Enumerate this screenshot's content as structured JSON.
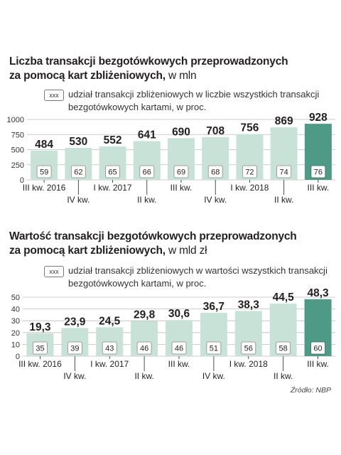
{
  "charts": [
    {
      "title_main": "Liczba transakcji bezgotówkowych przeprowadzonych",
      "title_line2": "za pomocą kart zbliżeniowych,",
      "unit": "w mln",
      "legend_box": "xxx",
      "legend_line1": "udział transakcji zbliżeniowych w liczbie wszystkich transakcji",
      "legend_line2": "bezgotówkowych kartami, w proc."
    },
    {
      "title_main": "Wartość transakcji bezgotówkowych przeprowadzonych",
      "title_line2": "za pomocą kart zbliżeniowych,",
      "unit": "w mld zł",
      "legend_box": "xxx",
      "legend_line1": "udział transakcji zbliżeniowych w wartości wszystkich transakcji",
      "legend_line2": "bezgotówkowych kartami, w proc."
    }
  ],
  "source": "Źródło: NBP",
  "colors": {
    "bar": "#c8e2d7",
    "bar_highlight": "#4e9a86",
    "grid": "#bcbcbc"
  },
  "chart_data": [
    {
      "type": "bar",
      "categories": [
        "III kw. 2016",
        "IV kw.",
        "I kw. 2017",
        "II kw.",
        "III kw.",
        "IV kw.",
        "I kw. 2018",
        "II kw.",
        "III kw."
      ],
      "values": [
        484,
        530,
        552,
        641,
        690,
        708,
        756,
        869,
        928
      ],
      "value_labels": [
        "484",
        "530",
        "552",
        "641",
        "690",
        "708",
        "756",
        "869",
        "928"
      ],
      "share_labels": [
        "59",
        "62",
        "65",
        "66",
        "69",
        "68",
        "72",
        "74",
        "76"
      ],
      "ylim": [
        0,
        1000
      ],
      "yticks": [
        "0",
        "250",
        "500",
        "750",
        "1000"
      ],
      "ytick_values": [
        0,
        250,
        500,
        750,
        1000
      ],
      "highlight_last": true
    },
    {
      "type": "bar",
      "categories": [
        "III kw. 2016",
        "IV kw.",
        "I kw. 2017",
        "II kw.",
        "III kw.",
        "IV kw.",
        "I kw. 2018",
        "II kw.",
        "III kw."
      ],
      "values": [
        19.3,
        23.9,
        24.5,
        29.8,
        30.6,
        36.7,
        38.3,
        44.5,
        48.3
      ],
      "value_labels": [
        "19,3",
        "23,9",
        "24,5",
        "29,8",
        "30,6",
        "36,7",
        "38,3",
        "44,5",
        "48,3"
      ],
      "share_labels": [
        "35",
        "39",
        "43",
        "46",
        "46",
        "51",
        "56",
        "58",
        "60"
      ],
      "ylim": [
        0,
        50
      ],
      "yticks": [
        "0",
        "10",
        "20",
        "30",
        "40",
        "50"
      ],
      "ytick_values": [
        0,
        10,
        20,
        30,
        40,
        50
      ],
      "highlight_last": true
    }
  ]
}
